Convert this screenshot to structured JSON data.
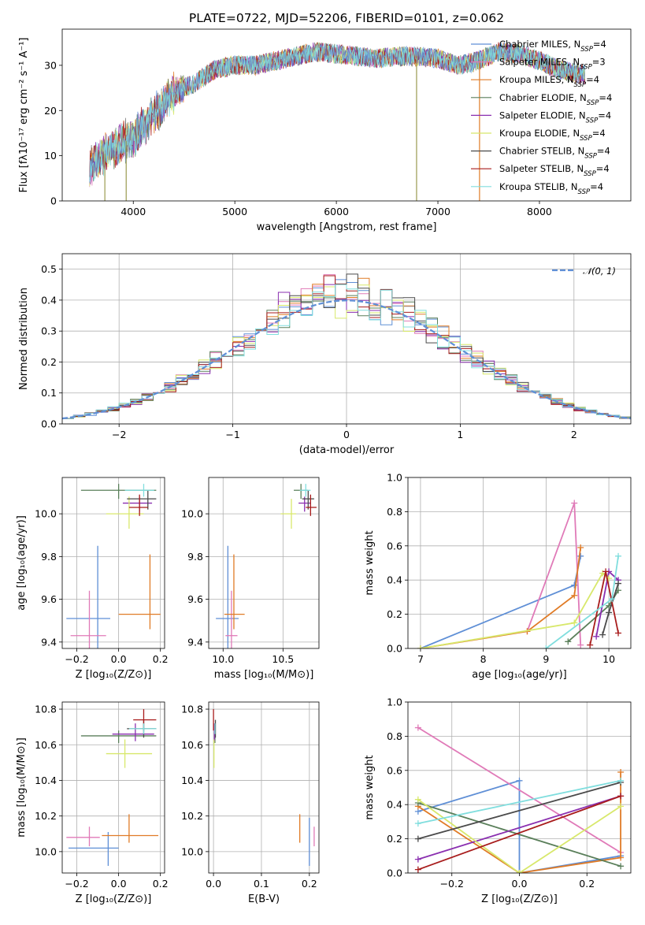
{
  "colors": {
    "c1": "#5f8fd6",
    "c2": "#e07ab8",
    "c3": "#e07b26",
    "c4": "#5a7f5a",
    "c5": "#8a2fb0",
    "c6": "#d8e86b",
    "c7": "#4a4a4a",
    "c8": "#a81c1c",
    "c9": "#80dede",
    "gauss": "#5f8fd6"
  },
  "chart_data": [
    {
      "type": "line",
      "title": "PLATE=0722, MJD=52206, FIBERID=0101, z=0.062",
      "xlabel": "wavelength [Angstrom, rest frame]",
      "ylabel": "Flux [fλ10⁻¹⁷ erg cm⁻² s⁻¹ A⁻¹]",
      "xlim": [
        3300,
        8900
      ],
      "ylim": [
        0,
        38
      ],
      "xticks": [
        "4000",
        "5000",
        "6000",
        "7000",
        "8000"
      ],
      "yticks": [
        "0",
        "10",
        "20",
        "30"
      ],
      "legend_position": "right",
      "legend": [
        "Chabrier MILES, N_SSP=4",
        "Salpeter MILES, N_SSP=3",
        "Kroupa MILES, N_SSP=4",
        "Chabrier ELODIE, N_SSP=4",
        "Salpeter ELODIE, N_SSP=4",
        "Kroupa ELODIE, N_SSP=4",
        "Chabrier STELIB, N_SSP=4",
        "Salpeter STELIB, N_SSP=4",
        "Kroupa STELIB, N_SSP=4"
      ],
      "continuum": {
        "wavelength": [
          3600,
          3800,
          4000,
          4200,
          4400,
          4600,
          4800,
          5000,
          5200,
          5400,
          5600,
          5800,
          6000,
          6200,
          6400,
          6600,
          6800,
          7000,
          7200,
          7400,
          7600,
          7800,
          8000,
          8200,
          8400
        ],
        "flux": [
          8,
          12,
          14,
          19,
          24,
          26,
          29,
          30,
          30,
          31,
          32,
          33,
          32.5,
          32,
          31.5,
          32,
          32,
          31.5,
          30,
          31,
          33,
          32.5,
          31,
          29,
          28
        ]
      },
      "dips": [
        {
          "wavelength": 3720,
          "flux": 0
        },
        {
          "wavelength": 3930,
          "flux": 0
        },
        {
          "wavelength": 6790,
          "flux": 0
        },
        {
          "wavelength": 7410,
          "flux": 0
        }
      ]
    },
    {
      "type": "histogram",
      "xlabel": "(data-model)/error",
      "ylabel": "Normed distribution",
      "xlim": [
        -2.5,
        2.5
      ],
      "ylim": [
        0,
        0.55
      ],
      "xticks": [
        "−2",
        "−1",
        "0",
        "1",
        "2"
      ],
      "yticks": [
        "0.0",
        "0.1",
        "0.2",
        "0.3",
        "0.4",
        "0.5"
      ],
      "bin_width": 0.1,
      "gaussian_label": "𝒩(0, 1)",
      "legend_position": "top-right"
    },
    {
      "type": "scatter",
      "xlabel": "Z [log₁₀(Z/Z⊙)]",
      "ylabel": "age  [log₁₀(age/yr)]",
      "xlim": [
        -0.27,
        0.22
      ],
      "ylim": [
        9.37,
        10.17
      ],
      "xticks": [
        "−0.2",
        "0.0",
        "0.2"
      ],
      "yticks": [
        "9.4",
        "9.6",
        "9.8",
        "10.0"
      ],
      "points": [
        {
          "series": 1,
          "x": -0.1,
          "y": 9.51,
          "xerr": [
            0.15,
            0.06
          ],
          "yerr": [
            0.14,
            0.34
          ]
        },
        {
          "series": 2,
          "x": -0.14,
          "y": 9.43,
          "xerr": [
            0.09,
            0.08
          ],
          "yerr": [
            0.07,
            0.21
          ]
        },
        {
          "series": 3,
          "x": 0.15,
          "y": 9.53,
          "xerr": [
            0.15,
            0.05
          ],
          "yerr": [
            0.07,
            0.28
          ]
        },
        {
          "series": 4,
          "x": 0.0,
          "y": 10.11,
          "xerr": [
            0.18,
            0.18
          ],
          "yerr": [
            0.04,
            0.03
          ]
        },
        {
          "series": 5,
          "x": 0.1,
          "y": 10.05,
          "xerr": [
            0.08,
            0.06
          ],
          "yerr": [
            0.04,
            0.03
          ]
        },
        {
          "series": 6,
          "x": 0.05,
          "y": 10.0,
          "xerr": [
            0.11,
            0.07
          ],
          "yerr": [
            0.07,
            0.08
          ]
        },
        {
          "series": 7,
          "x": 0.14,
          "y": 10.07,
          "xerr": [
            0.1,
            0.04
          ],
          "yerr": [
            0.05,
            0.04
          ]
        },
        {
          "series": 8,
          "x": 0.1,
          "y": 10.03,
          "xerr": [
            0.05,
            0.04
          ],
          "yerr": [
            0.04,
            0.06
          ]
        },
        {
          "series": 9,
          "x": 0.12,
          "y": 10.11,
          "xerr": [
            0.09,
            0.05
          ],
          "yerr": [
            0.03,
            0.03
          ]
        }
      ]
    },
    {
      "type": "scatter",
      "xlabel": "mass [log₁₀(M/M⊙)]",
      "xlim": [
        9.88,
        10.8
      ],
      "ylim": [
        9.37,
        10.17
      ],
      "xticks": [
        "10.0",
        "10.5"
      ],
      "yticks": [
        "9.4",
        "9.6",
        "9.8",
        "10.0"
      ],
      "points": [
        {
          "series": 1,
          "x": 10.04,
          "y": 9.51,
          "xerr": [
            0.1,
            0.09
          ],
          "yerr": [
            0.14,
            0.34
          ]
        },
        {
          "series": 2,
          "x": 10.07,
          "y": 9.43,
          "xerr": [
            0.05,
            0.05
          ],
          "yerr": [
            0.06,
            0.21
          ]
        },
        {
          "series": 3,
          "x": 10.09,
          "y": 9.53,
          "xerr": [
            0.08,
            0.09
          ],
          "yerr": [
            0.07,
            0.28
          ]
        },
        {
          "series": 4,
          "x": 10.65,
          "y": 10.11,
          "xerr": [
            0.06,
            0.06
          ],
          "yerr": [
            0.04,
            0.03
          ]
        },
        {
          "series": 5,
          "x": 10.68,
          "y": 10.05,
          "xerr": [
            0.05,
            0.05
          ],
          "yerr": [
            0.04,
            0.03
          ]
        },
        {
          "series": 6,
          "x": 10.57,
          "y": 10.0,
          "xerr": [
            0.09,
            0.04
          ],
          "yerr": [
            0.07,
            0.07
          ]
        },
        {
          "series": 7,
          "x": 10.71,
          "y": 10.07,
          "xerr": [
            0.05,
            0.05
          ],
          "yerr": [
            0.05,
            0.04
          ]
        },
        {
          "series": 8,
          "x": 10.73,
          "y": 10.03,
          "xerr": [
            0.04,
            0.05
          ],
          "yerr": [
            0.04,
            0.06
          ]
        },
        {
          "series": 9,
          "x": 10.69,
          "y": 10.11,
          "xerr": [
            0.05,
            0.04
          ],
          "yerr": [
            0.03,
            0.03
          ]
        }
      ]
    },
    {
      "type": "line",
      "xlabel": "age  [log₁₀(age/yr)]",
      "ylabel": "mass weight",
      "xlim": [
        6.8,
        10.35
      ],
      "ylim": [
        0,
        1
      ],
      "xticks": [
        "7",
        "8",
        "9",
        "10"
      ],
      "yticks": [
        "0.0",
        "0.2",
        "0.4",
        "0.6",
        "0.8",
        "1.0"
      ],
      "series": [
        {
          "series": 1,
          "x": [
            7.0,
            9.45,
            9.55
          ],
          "y": [
            0.0,
            0.37,
            0.54
          ]
        },
        {
          "series": 2,
          "x": [
            8.7,
            9.45,
            9.55
          ],
          "y": [
            0.1,
            0.85,
            0.02
          ]
        },
        {
          "series": 3,
          "x": [
            7.0,
            8.7,
            9.45,
            9.55
          ],
          "y": [
            0.0,
            0.1,
            0.31,
            0.59
          ]
        },
        {
          "series": 4,
          "x": [
            9.35,
            10.0,
            10.15
          ],
          "y": [
            0.04,
            0.25,
            0.34
          ]
        },
        {
          "series": 5,
          "x": [
            9.8,
            10.0,
            10.15
          ],
          "y": [
            0.07,
            0.45,
            0.4
          ]
        },
        {
          "series": 6,
          "x": [
            7.0,
            9.45,
            9.9,
            10.0
          ],
          "y": [
            0.0,
            0.15,
            0.44,
            0.41
          ]
        },
        {
          "series": 7,
          "x": [
            9.9,
            10.0,
            10.15
          ],
          "y": [
            0.08,
            0.21,
            0.38
          ]
        },
        {
          "series": 8,
          "x": [
            9.7,
            9.95,
            10.15
          ],
          "y": [
            0.02,
            0.45,
            0.09
          ]
        },
        {
          "series": 9,
          "x": [
            9.0,
            10.05,
            10.15
          ],
          "y": [
            0.0,
            0.29,
            0.54
          ]
        }
      ]
    },
    {
      "type": "scatter",
      "xlabel": "Z [log₁₀(Z/Z⊙)]",
      "ylabel": "mass [log₁₀(M/M⊙)]",
      "xlim": [
        -0.27,
        0.22
      ],
      "ylim": [
        9.88,
        10.84
      ],
      "xticks": [
        "−0.2",
        "0.0",
        "0.2"
      ],
      "yticks": [
        "10.0",
        "10.2",
        "10.4",
        "10.6",
        "10.8"
      ],
      "points": [
        {
          "series": 1,
          "x": -0.05,
          "y": 10.02,
          "xerr": [
            0.19,
            0.05
          ],
          "yerr": [
            0.1,
            0.09
          ]
        },
        {
          "series": 2,
          "x": -0.14,
          "y": 10.08,
          "xerr": [
            0.11,
            0.05
          ],
          "yerr": [
            0.05,
            0.06
          ]
        },
        {
          "series": 3,
          "x": 0.05,
          "y": 10.09,
          "xerr": [
            0.13,
            0.14
          ],
          "yerr": [
            0.04,
            0.12
          ]
        },
        {
          "series": 4,
          "x": 0.0,
          "y": 10.65,
          "xerr": [
            0.18,
            0.18
          ],
          "yerr": [
            0.04,
            0.03
          ]
        },
        {
          "series": 5,
          "x": 0.08,
          "y": 10.66,
          "xerr": [
            0.11,
            0.09
          ],
          "yerr": [
            0.04,
            0.06
          ]
        },
        {
          "series": 6,
          "x": 0.03,
          "y": 10.55,
          "xerr": [
            0.09,
            0.13
          ],
          "yerr": [
            0.08,
            0.08
          ]
        },
        {
          "series": 7,
          "x": 0.12,
          "y": 10.69,
          "xerr": [
            0.08,
            0.06
          ],
          "yerr": [
            0.05,
            0.05
          ]
        },
        {
          "series": 8,
          "x": 0.12,
          "y": 10.74,
          "xerr": [
            0.05,
            0.06
          ],
          "yerr": [
            0.06,
            0.06
          ]
        },
        {
          "series": 9,
          "x": 0.12,
          "y": 10.69,
          "xerr": [
            0.07,
            0.06
          ],
          "yerr": [
            0.03,
            0.03
          ]
        }
      ]
    },
    {
      "type": "scatter",
      "xlabel": "E(B-V)",
      "xlim": [
        -0.01,
        0.22
      ],
      "ylim": [
        9.88,
        10.84
      ],
      "xticks": [
        "0.0",
        "0.1",
        "0.2"
      ],
      "yticks": [
        "10.0",
        "10.2",
        "10.4",
        "10.6",
        "10.8"
      ],
      "points": [
        {
          "series": 1,
          "x": 0.2,
          "y": 10.02,
          "yerr": [
            0.1,
            0.17
          ]
        },
        {
          "series": 2,
          "x": 0.21,
          "y": 10.08,
          "yerr": [
            0.05,
            0.06
          ]
        },
        {
          "series": 3,
          "x": 0.18,
          "y": 10.09,
          "yerr": [
            0.04,
            0.12
          ]
        },
        {
          "series": 4,
          "x": 0.003,
          "y": 10.65,
          "yerr": [
            0.04,
            0.03
          ]
        },
        {
          "series": 5,
          "x": 0.002,
          "y": 10.66,
          "yerr": [
            0.04,
            0.06
          ]
        },
        {
          "series": 6,
          "x": 0.001,
          "y": 10.55,
          "yerr": [
            0.08,
            0.08
          ]
        },
        {
          "series": 7,
          "x": 0.004,
          "y": 10.69,
          "yerr": [
            0.05,
            0.05
          ]
        },
        {
          "series": 8,
          "x": 0.0,
          "y": 10.74,
          "yerr": [
            0.06,
            0.06
          ]
        },
        {
          "series": 9,
          "x": 0.003,
          "y": 10.69,
          "yerr": [
            0.03,
            0.03
          ]
        }
      ]
    },
    {
      "type": "line",
      "xlabel": "Z [log₁₀(Z/Z⊙)]",
      "ylabel": "mass weight",
      "xlim": [
        -0.33,
        0.33
      ],
      "ylim": [
        0,
        1
      ],
      "xticks": [
        "−0.2",
        "0.0",
        "0.2"
      ],
      "yticks": [
        "0.0",
        "0.2",
        "0.4",
        "0.6",
        "0.8",
        "1.0"
      ],
      "series": [
        {
          "series": 1,
          "x": [
            -0.3,
            0.0,
            0.0,
            0.3
          ],
          "y": [
            0.36,
            0.54,
            0.0,
            0.1
          ]
        },
        {
          "series": 2,
          "x": [
            -0.3,
            0.3
          ],
          "y": [
            0.85,
            0.12
          ]
        },
        {
          "series": 3,
          "x": [
            -0.3,
            0.0,
            0.3,
            0.3
          ],
          "y": [
            0.39,
            0.0,
            0.09,
            0.59
          ]
        },
        {
          "series": 4,
          "x": [
            -0.3,
            0.3
          ],
          "y": [
            0.41,
            0.04
          ]
        },
        {
          "series": 5,
          "x": [
            -0.3,
            0.3
          ],
          "y": [
            0.08,
            0.45
          ]
        },
        {
          "series": 6,
          "x": [
            -0.3,
            0.0,
            0.3
          ],
          "y": [
            0.43,
            0.0,
            0.39
          ]
        },
        {
          "series": 7,
          "x": [
            -0.3,
            0.3
          ],
          "y": [
            0.2,
            0.53
          ]
        },
        {
          "series": 8,
          "x": [
            -0.3,
            0.3
          ],
          "y": [
            0.02,
            0.45
          ]
        },
        {
          "series": 9,
          "x": [
            -0.3,
            0.3
          ],
          "y": [
            0.29,
            0.54
          ]
        }
      ]
    }
  ]
}
